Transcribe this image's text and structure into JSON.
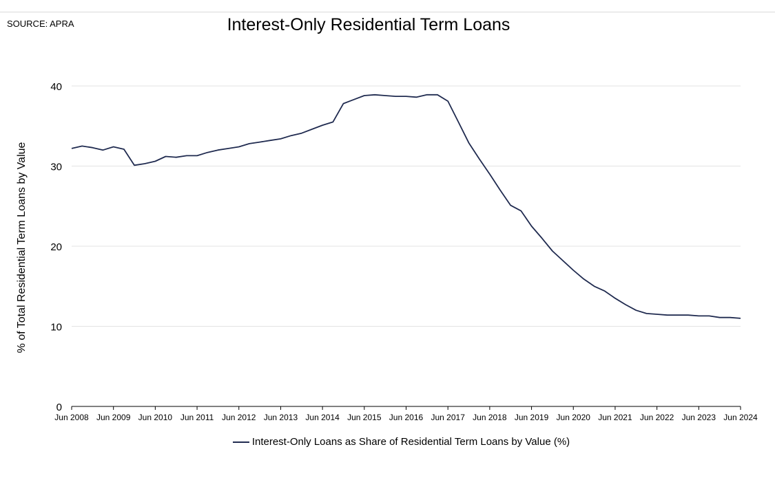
{
  "source": "SOURCE: APRA",
  "chart_data": {
    "type": "line",
    "title": "Interest-Only Residential Term Loans",
    "ylabel": "% of Total Residential Term Loans by Value",
    "xlabel": "",
    "ylim": [
      0,
      40
    ],
    "yticks": [
      0,
      10,
      20,
      30,
      40
    ],
    "xticks": [
      "Jun 2008",
      "Jun 2009",
      "Jun 2010",
      "Jun 2011",
      "Jun 2012",
      "Jun 2013",
      "Jun 2014",
      "Jun 2015",
      "Jun 2016",
      "Jun 2017",
      "Jun 2018",
      "Jun 2019",
      "Jun 2020",
      "Jun 2021",
      "Jun 2022",
      "Jun 2023",
      "Jun 2024"
    ],
    "grid": "horizontal",
    "legend": "bottom",
    "color": "#1f2a4f",
    "series": [
      {
        "name": "Interest-Only Loans as Share of Residential Term Loans by Value (%)",
        "x": [
          "Jun 2008",
          "Sep 2008",
          "Dec 2008",
          "Mar 2009",
          "Jun 2009",
          "Sep 2009",
          "Dec 2009",
          "Mar 2010",
          "Jun 2010",
          "Sep 2010",
          "Dec 2010",
          "Mar 2011",
          "Jun 2011",
          "Sep 2011",
          "Dec 2011",
          "Mar 2012",
          "Jun 2012",
          "Sep 2012",
          "Dec 2012",
          "Mar 2013",
          "Jun 2013",
          "Sep 2013",
          "Dec 2013",
          "Mar 2014",
          "Jun 2014",
          "Sep 2014",
          "Dec 2014",
          "Mar 2015",
          "Jun 2015",
          "Sep 2015",
          "Dec 2015",
          "Mar 2016",
          "Jun 2016",
          "Sep 2016",
          "Dec 2016",
          "Mar 2017",
          "Jun 2017",
          "Sep 2017",
          "Dec 2017",
          "Mar 2018",
          "Jun 2018",
          "Sep 2018",
          "Dec 2018",
          "Mar 2019",
          "Jun 2019",
          "Sep 2019",
          "Dec 2019",
          "Mar 2020",
          "Jun 2020",
          "Sep 2020",
          "Dec 2020",
          "Mar 2021",
          "Jun 2021",
          "Sep 2021",
          "Dec 2021",
          "Mar 2022",
          "Jun 2022",
          "Sep 2022",
          "Dec 2022",
          "Mar 2023",
          "Jun 2023",
          "Sep 2023",
          "Dec 2023",
          "Mar 2024",
          "Jun 2024"
        ],
        "values": [
          32.2,
          32.5,
          32.3,
          32.0,
          32.4,
          32.1,
          30.1,
          30.3,
          30.6,
          31.2,
          31.1,
          31.3,
          31.3,
          31.7,
          32.0,
          32.2,
          32.4,
          32.8,
          33.0,
          33.2,
          33.4,
          33.8,
          34.1,
          34.6,
          35.1,
          35.5,
          37.8,
          38.3,
          38.8,
          38.9,
          38.8,
          38.7,
          38.7,
          38.6,
          38.9,
          38.9,
          38.1,
          35.5,
          32.9,
          30.9,
          29.0,
          27.0,
          25.1,
          24.4,
          22.5,
          21.0,
          19.4,
          18.2,
          17.0,
          15.9,
          15.0,
          14.4,
          13.5,
          12.7,
          12.0,
          11.6,
          11.5,
          11.4,
          11.4,
          11.4,
          11.3,
          11.3,
          11.1,
          11.1,
          11.0
        ]
      }
    ]
  }
}
